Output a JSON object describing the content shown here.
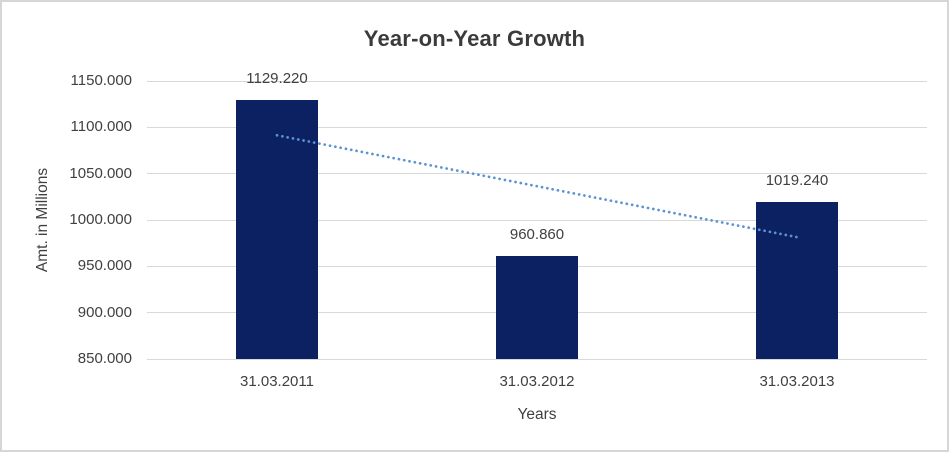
{
  "chart_data": {
    "type": "bar",
    "title": "Year-on-Year Growth",
    "xlabel": "Years",
    "ylabel": "Amt. in Millions",
    "categories": [
      "31.03.2011",
      "31.03.2012",
      "31.03.2013"
    ],
    "values": [
      1129.22,
      960.86,
      1019.24
    ],
    "value_labels": [
      "1129.220",
      "960.860",
      "1019.240"
    ],
    "ylim": [
      850,
      1150
    ],
    "ytick_step": 50,
    "ytick_labels": [
      "850.000",
      "900.000",
      "950.000",
      "1000.000",
      "1050.000",
      "1100.000",
      "1150.000"
    ],
    "grid": true,
    "legend": false,
    "trendline": {
      "type": "linear",
      "style": "dotted",
      "start_value": 1091.4,
      "end_value": 981.5
    },
    "colors": {
      "bar": "#0b2161",
      "trendline": "#5b93d2",
      "gridline": "#d9d9d9",
      "axis_text": "#404040",
      "title_text": "#3b3b3b",
      "background": "#ffffff",
      "frame_border": "#d6d6d6"
    }
  }
}
